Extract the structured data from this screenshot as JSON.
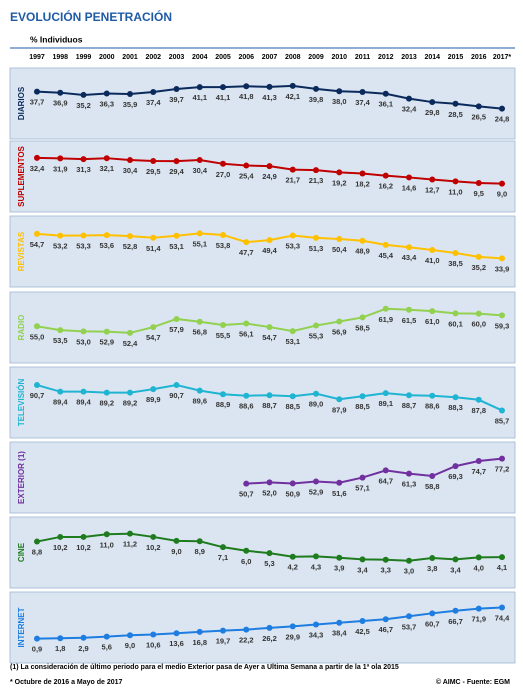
{
  "title": "EVOLUCIÓN PENETRACIÓN",
  "subtitle": "% Individuos",
  "categories": [
    "1997",
    "1998",
    "1999",
    "2000",
    "2001",
    "2002",
    "2003",
    "2004",
    "2005",
    "2006",
    "2007",
    "2008",
    "2009",
    "2010",
    "2011",
    "2012",
    "2013",
    "2014",
    "2015",
    "2016",
    "2017*"
  ],
  "footnotes": [
    "(1) La consideración de último periodo  para el medio Exterior pasa de Ayer a Última Semana a partir de la 1ª ola 2015",
    "* Octubre de 2016 a Mayo de 2017"
  ],
  "source": "© AIMC - Fuente: EGM",
  "chart_data": [
    {
      "type": "line",
      "title": "DIARIOS",
      "color": "#0b2a5c",
      "ylim": [
        20,
        45
      ],
      "values": [
        37.7,
        36.9,
        35.2,
        36.3,
        35.9,
        37.4,
        39.7,
        41.1,
        41.1,
        41.8,
        41.3,
        42.1,
        39.8,
        38.0,
        37.4,
        36.1,
        32.4,
        29.8,
        28.5,
        26.5,
        24.8
      ],
      "value_labels": [
        "37,7",
        "36,9",
        "35,2",
        "36,3",
        "35,9",
        "37,4",
        "39,7",
        "41,1",
        "41,1",
        "41,8",
        "41,3",
        "42,1",
        "39,8",
        "38,0",
        "37,4",
        "36,1",
        "32,4",
        "29,8",
        "28,5",
        "26,5",
        "24,8"
      ]
    },
    {
      "type": "line",
      "title": "SUPLEMENTOS",
      "color": "#c00000",
      "ylim": [
        5,
        35
      ],
      "values": [
        32.4,
        31.9,
        31.3,
        32.1,
        30.4,
        29.5,
        29.4,
        30.4,
        27.0,
        25.4,
        24.9,
        21.7,
        21.3,
        19.2,
        18.2,
        16.2,
        14.6,
        12.7,
        11.0,
        9.5,
        9.0
      ],
      "value_labels": [
        "32,4",
        "31,9",
        "31,3",
        "32,1",
        "30,4",
        "29,5",
        "29,4",
        "30,4",
        "27,0",
        "25,4",
        "24,9",
        "21,7",
        "21,3",
        "19,2",
        "18,2",
        "16,2",
        "14,6",
        "12,7",
        "11,0",
        "9,5",
        "9,0"
      ]
    },
    {
      "type": "line",
      "title": "REVISTAS",
      "color": "#ffc000",
      "ylim": [
        30,
        58
      ],
      "values": [
        54.7,
        53.2,
        53.3,
        53.6,
        52.8,
        51.4,
        53.1,
        55.1,
        53.8,
        47.7,
        49.4,
        53.3,
        51.3,
        50.4,
        48.9,
        45.4,
        43.4,
        41.0,
        38.5,
        35.2,
        33.9
      ],
      "value_labels": [
        "54,7",
        "53,2",
        "53,3",
        "53,6",
        "52,8",
        "51,4",
        "53,1",
        "55,1",
        "53,8",
        "47,7",
        "49,4",
        "53,3",
        "51,3",
        "50,4",
        "48,9",
        "45,4",
        "43,4",
        "41,0",
        "38,5",
        "35,2",
        "33,9"
      ]
    },
    {
      "type": "line",
      "title": "RADIO",
      "color": "#92d050",
      "ylim": [
        50,
        63
      ],
      "values": [
        55.0,
        53.5,
        53.0,
        52.9,
        52.4,
        54.7,
        57.9,
        56.8,
        55.5,
        56.1,
        54.7,
        53.1,
        55.3,
        56.9,
        58.5,
        61.9,
        61.5,
        61.0,
        60.1,
        60.0,
        59.3
      ],
      "value_labels": [
        "55,0",
        "53,5",
        "53,0",
        "52,9",
        "52,4",
        "54,7",
        "57,9",
        "56,8",
        "55,5",
        "56,1",
        "54,7",
        "53,1",
        "55,3",
        "56,9",
        "58,5",
        "61,9",
        "61,5",
        "61,0",
        "60,1",
        "60,0",
        "59,3"
      ]
    },
    {
      "type": "line",
      "title": "TELEVISIÓN",
      "color": "#1fb4d2",
      "ylim": [
        85,
        91.5
      ],
      "values": [
        90.7,
        89.4,
        89.4,
        89.2,
        89.2,
        89.9,
        90.7,
        89.6,
        88.9,
        88.6,
        88.7,
        88.5,
        89.0,
        87.9,
        88.5,
        89.1,
        88.7,
        88.6,
        88.3,
        87.8,
        85.7
      ],
      "value_labels": [
        "90,7",
        "89,4",
        "89,4",
        "89,2",
        "89,2",
        "89,9",
        "90,7",
        "89,6",
        "88,9",
        "88,6",
        "88,7",
        "88,5",
        "89,0",
        "87,9",
        "88,5",
        "89,1",
        "88,7",
        "88,6",
        "88,3",
        "87,8",
        "85,7"
      ]
    },
    {
      "type": "line",
      "title": "EXTERIOR (1)",
      "color": "#7030a0",
      "ylim": [
        45,
        80
      ],
      "values": [
        null,
        null,
        null,
        null,
        null,
        null,
        null,
        null,
        null,
        50.7,
        52.0,
        50.9,
        52.9,
        51.6,
        57.1,
        64.7,
        61.3,
        58.8,
        69.3,
        74.7,
        77.2
      ],
      "value_labels": [
        null,
        null,
        null,
        null,
        null,
        null,
        null,
        null,
        null,
        "50,7",
        "52,0",
        "50,9",
        "52,9",
        "51,6",
        "57,1",
        "64,7",
        "61,3",
        "58,8",
        "69,3",
        "74,7",
        "77,2"
      ]
    },
    {
      "type": "line",
      "title": "CINE",
      "color": "#1e7b1e",
      "ylim": [
        2,
        12
      ],
      "values": [
        8.8,
        10.2,
        10.2,
        11.0,
        11.2,
        10.2,
        9.0,
        8.9,
        7.1,
        6.0,
        5.3,
        4.2,
        4.3,
        3.9,
        3.4,
        3.3,
        3.0,
        3.8,
        3.4,
        4.0,
        4.1
      ],
      "value_labels": [
        "8,8",
        "10,2",
        "10,2",
        "11,0",
        "11,2",
        "10,2",
        "9,0",
        "8,9",
        "7,1",
        "6,0",
        "5,3",
        "4,2",
        "4,3",
        "3,9",
        "3,4",
        "3,3",
        "3,0",
        "3,8",
        "3,4",
        "4,0",
        "4,1"
      ]
    },
    {
      "type": "line",
      "title": "INTERNET",
      "color": "#1e7de0",
      "ylim": [
        0,
        78
      ],
      "values": [
        0.9,
        1.8,
        2.9,
        5.6,
        9.0,
        10.6,
        13.6,
        16.8,
        19.7,
        22.2,
        26.2,
        29.9,
        34.3,
        38.4,
        42.5,
        46.7,
        53.7,
        60.7,
        66.7,
        71.9,
        74.4
      ],
      "value_labels": [
        "0,9",
        "1,8",
        "2,9",
        "5,6",
        "9,0",
        "10,6",
        "13,6",
        "16,8",
        "19,7",
        "22,2",
        "26,2",
        "29,9",
        "34,3",
        "38,4",
        "42,5",
        "46,7",
        "53,7",
        "60,7",
        "66,7",
        "71,9",
        "74,4"
      ]
    }
  ]
}
